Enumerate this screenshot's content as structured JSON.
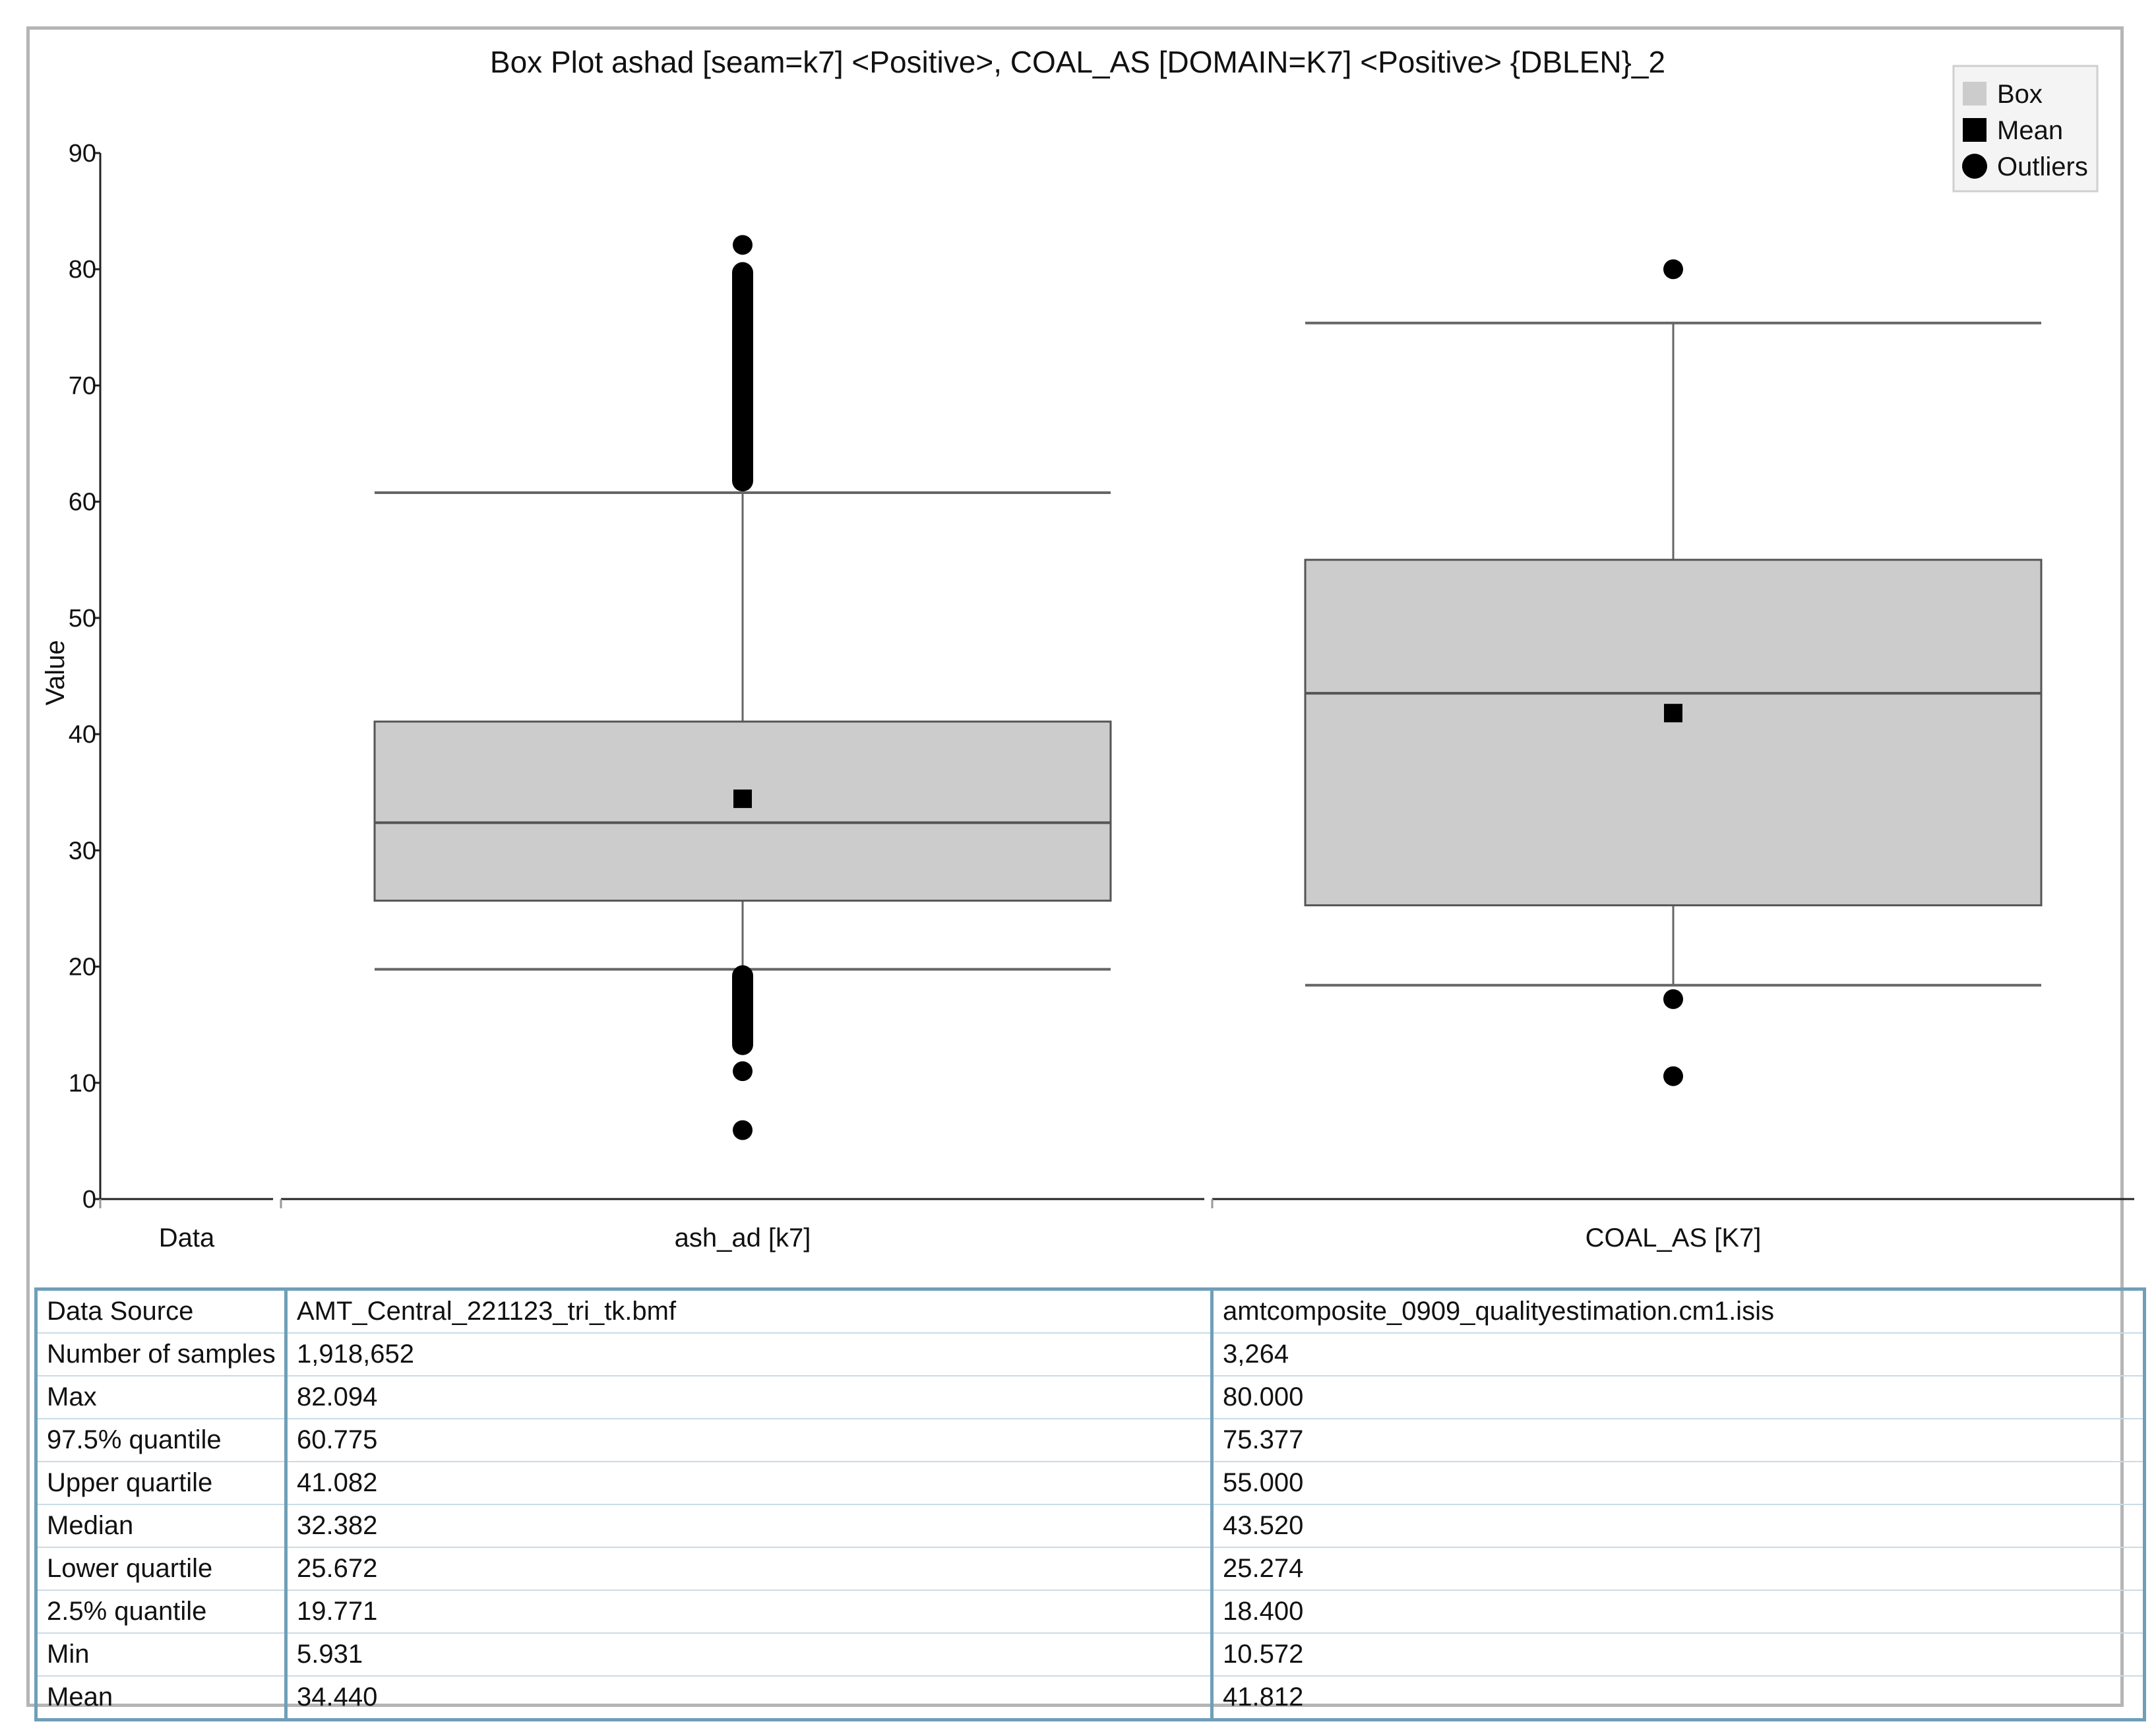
{
  "chart_data": {
    "type": "box",
    "title": "Box Plot  ashad [seam=k7] <Positive>, COAL_AS [DOMAIN=K7] <Positive> {DBLEN}_2",
    "ylabel": "Value",
    "ylim": [
      0,
      90
    ],
    "yticks": [
      0,
      10,
      20,
      30,
      40,
      50,
      60,
      70,
      80,
      90
    ],
    "data_axis_label": "Data",
    "legend": {
      "placement": "top-right",
      "entries": [
        "Box",
        "Mean",
        "Outliers"
      ]
    },
    "box_color": "#cccccc",
    "series": [
      {
        "category": "ash_ad [k7]",
        "max": 82.094,
        "q975": 60.775,
        "upper_quartile": 41.082,
        "median": 32.382,
        "lower_quartile": 25.672,
        "q025": 19.771,
        "min": 5.931,
        "mean": 34.44,
        "outlier_bands": [
          [
            61.0,
            80.5
          ],
          [
            12.5,
            20.0
          ]
        ],
        "outliers": [
          82.094,
          11.0,
          5.931
        ]
      },
      {
        "category": "COAL_AS [K7]",
        "max": 80.0,
        "q975": 75.377,
        "upper_quartile": 55.0,
        "median": 43.52,
        "lower_quartile": 25.274,
        "q025": 18.4,
        "min": 10.572,
        "mean": 41.812,
        "outlier_bands": [],
        "outliers": [
          80.0,
          17.2,
          10.572
        ]
      }
    ]
  },
  "table": {
    "headers": [
      "Data Source",
      "AMT_Central_221123_tri_tk.bmf",
      "amtcomposite_0909_qualityestimation.cm1.isis"
    ],
    "rows": [
      [
        "Number of samples",
        "1,918,652",
        "3,264"
      ],
      [
        "Max",
        "82.094",
        "80.000"
      ],
      [
        "97.5% quantile",
        "60.775",
        "75.377"
      ],
      [
        "Upper quartile",
        "41.082",
        "55.000"
      ],
      [
        "Median",
        "32.382",
        "43.520"
      ],
      [
        "Lower quartile",
        "25.672",
        "25.274"
      ],
      [
        "2.5% quantile",
        "19.771",
        "18.400"
      ],
      [
        "Min",
        "5.931",
        "10.572"
      ],
      [
        "Mean",
        "34.440",
        "41.812"
      ]
    ]
  }
}
